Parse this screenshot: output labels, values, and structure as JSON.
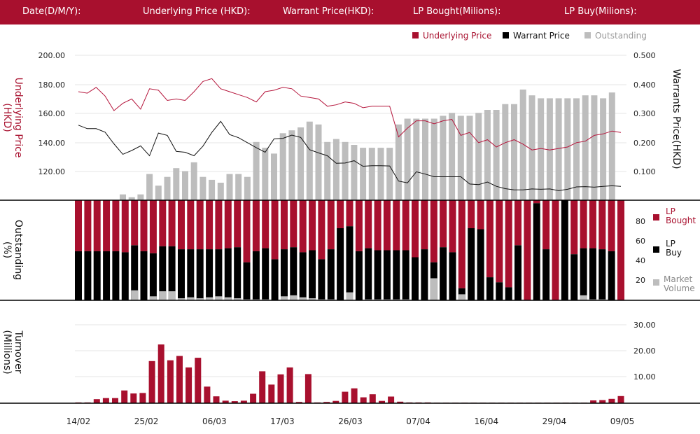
{
  "header": {
    "fields": [
      "Date(D/M/Y):",
      "Underlying Price (HKD):",
      "Warrant  Price(HKD):",
      "LP Bought(Milions):",
      "LP Buy(Milions):"
    ]
  },
  "colors": {
    "header": "#a8102e",
    "underlying": "#b5163c",
    "warrant": "#111111",
    "outstanding": "#bdbdbd",
    "lp_bought": "#a8102e",
    "lp_buy": "#000000",
    "market_volume": "#bdbdbd"
  },
  "chart_data": [
    {
      "type": "line",
      "title": "",
      "legend": [
        "Underlying Price",
        "Warrant  Price",
        "Outstanding"
      ],
      "legend_placement": "top-right",
      "ylabel_left": "Underlying Price\n(HKD)",
      "ylabel_right": "Warrants  Price(HKD)",
      "y_left_ticks": [
        "200.00",
        "180.00",
        "160.00",
        "140.00",
        "120.00"
      ],
      "y_right_ticks": [
        "0.500",
        "0.400",
        "0.300",
        "0.200",
        "0.100"
      ],
      "ylim_left": [
        100,
        200
      ],
      "ylim_right": [
        0,
        0.5
      ],
      "underlying_price": [
        175,
        174,
        178,
        172,
        162,
        167,
        170,
        163,
        177,
        176,
        169,
        170,
        169,
        175,
        182,
        184,
        177,
        175,
        173,
        171,
        168,
        175,
        176,
        178,
        177,
        172,
        171,
        170,
        165,
        166,
        168,
        167,
        164,
        165,
        165,
        165,
        144,
        150,
        155,
        155,
        153,
        155,
        156,
        145,
        147,
        140,
        142,
        137,
        140,
        142,
        139,
        135,
        136,
        135,
        136,
        137,
        140,
        141,
        145,
        146,
        148,
        147
      ],
      "warrant_price": [
        0.26,
        0.248,
        0.248,
        0.236,
        0.196,
        0.16,
        0.173,
        0.189,
        0.155,
        0.233,
        0.225,
        0.17,
        0.167,
        0.155,
        0.188,
        0.235,
        0.273,
        0.228,
        0.217,
        0.2,
        0.183,
        0.167,
        0.213,
        0.215,
        0.226,
        0.218,
        0.176,
        0.165,
        0.155,
        0.129,
        0.13,
        0.138,
        0.119,
        0.121,
        0.121,
        0.12,
        0.068,
        0.062,
        0.1,
        0.092,
        0.083,
        0.083,
        0.083,
        0.083,
        0.058,
        0.056,
        0.065,
        0.05,
        0.042,
        0.038,
        0.038,
        0.041,
        0.04,
        0.041,
        0.035,
        0.04,
        0.048,
        0.049,
        0.047,
        0.05,
        0.052,
        0.05
      ],
      "outstanding": [
        0,
        0,
        0,
        0,
        0,
        2,
        1,
        2,
        9,
        5,
        8,
        11,
        10,
        13,
        8,
        7,
        6,
        9,
        9,
        8,
        20,
        18,
        16,
        23,
        24,
        25,
        27,
        26,
        20,
        21,
        20,
        19,
        18,
        18,
        18,
        18,
        26,
        28,
        28,
        28,
        28,
        29,
        30,
        29,
        29,
        30,
        31,
        31,
        33,
        33,
        38,
        36,
        35,
        35,
        35,
        35,
        35,
        36,
        36,
        35,
        37,
        0
      ],
      "outstanding_max": 50
    },
    {
      "type": "bar",
      "stacked": true,
      "ylabel": "Outstanding\n(%)",
      "y_ticks": [
        "80",
        "60",
        "40",
        "20"
      ],
      "ylim": [
        0,
        100
      ],
      "series_names": [
        "LP\nBought",
        "LP\nBuy",
        "Market\nVolume"
      ],
      "lp_buy": [
        49,
        49,
        49,
        49,
        49,
        48,
        55,
        49,
        47,
        54,
        54,
        51,
        51,
        51,
        51,
        51,
        52,
        53,
        38,
        49,
        52,
        41,
        51,
        53,
        48,
        50,
        41,
        51,
        72,
        74,
        49,
        52,
        50,
        50,
        50,
        50,
        43,
        51,
        38,
        53,
        48,
        12,
        72,
        71,
        23,
        18,
        13,
        55,
        0,
        97,
        51,
        0,
        100,
        46,
        52,
        52,
        51,
        49,
        0
      ],
      "market_volume": [
        0,
        0,
        0,
        0,
        0,
        0,
        10,
        0,
        4,
        9,
        9,
        2,
        3,
        2,
        3,
        4,
        3,
        2,
        1,
        1,
        1,
        0,
        4,
        5,
        3,
        2,
        1,
        1,
        0,
        8,
        0,
        1,
        1,
        1,
        1,
        1,
        0,
        0,
        22,
        0,
        0,
        6,
        0,
        0,
        0,
        0,
        0,
        0,
        0,
        0,
        0,
        0,
        0,
        0,
        5,
        1,
        1,
        0,
        0
      ]
    },
    {
      "type": "bar",
      "ylabel": "Turnover\n(Millions)",
      "y_ticks": [
        "30.00",
        "20.00",
        "10.00"
      ],
      "ylim": [
        0,
        34
      ],
      "values": [
        0.3,
        0.3,
        1.6,
        2,
        2,
        5,
        3.8,
        4,
        16.5,
        23,
        16.8,
        18.5,
        14,
        17.8,
        6.5,
        2.7,
        1,
        0.8,
        1,
        3.7,
        12.5,
        7.3,
        11.3,
        14,
        0.5,
        11.4,
        0.3,
        0.5,
        0.9,
        4.5,
        5.8,
        2.3,
        3.5,
        0.9,
        2.6,
        0.6,
        0.3,
        0.3,
        0.3,
        0.2,
        0.2,
        0.2,
        0.2,
        0.2,
        0.2,
        0.2,
        0.2,
        0.2,
        0.2,
        0.2,
        0.2,
        0.2,
        0.2,
        0.2,
        0.2,
        0.2,
        1.1,
        1.2,
        1.7,
        2.8
      ],
      "x_ticks": [
        "14/02",
        "25/02",
        "06/03",
        "17/03",
        "26/03",
        "07/04",
        "16/04",
        "29/04",
        "09/05"
      ]
    }
  ]
}
